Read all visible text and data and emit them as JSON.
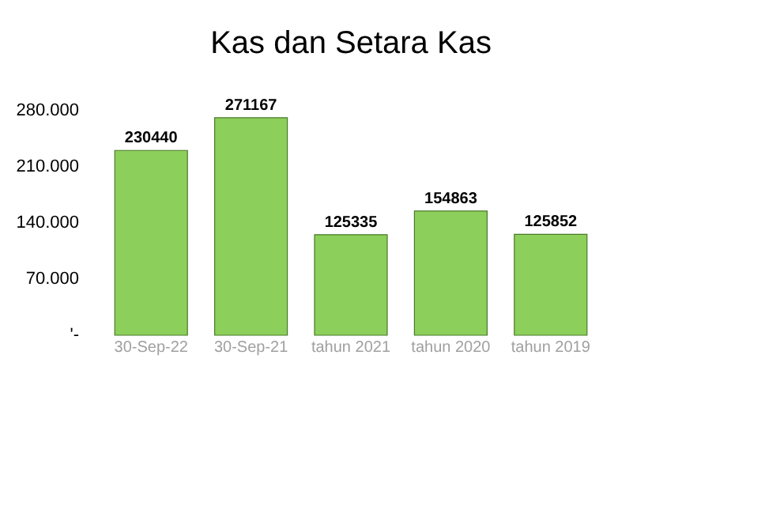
{
  "chart_data": {
    "type": "bar",
    "title": "Kas dan Setara Kas",
    "categories": [
      "30-Sep-22",
      "30-Sep-21",
      "tahun 2021",
      "tahun 2020",
      "tahun 2019"
    ],
    "values": [
      230440,
      271167,
      125335,
      154863,
      125852
    ],
    "color": "#8ccf5a",
    "ylim": [
      0,
      280000
    ],
    "yticks": [
      {
        "value": 0,
        "label": "'-"
      },
      {
        "value": 70000,
        "label": "70.000"
      },
      {
        "value": 140000,
        "label": "140.000"
      },
      {
        "value": 210000,
        "label": "210.000"
      },
      {
        "value": 280000,
        "label": "280.000"
      }
    ],
    "data_labels": true,
    "grid": false,
    "legend": false
  }
}
